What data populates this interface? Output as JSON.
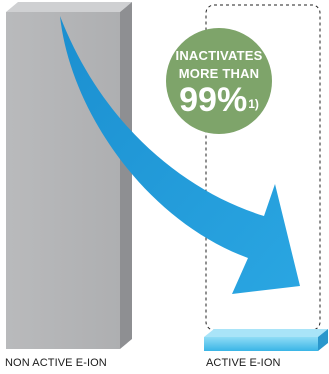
{
  "badge": {
    "line1": "INACTIVATES",
    "line2": "MORE THAN",
    "percent": "99%",
    "footnote": "1)"
  },
  "labels": {
    "left": "NON ACTIVE E-ION",
    "right": "ACTIVE E-ION"
  },
  "colors": {
    "bar": "#b7b8ba",
    "arrow": "#1e9ad6",
    "badge": "#7ea46a",
    "small_bar": "#5cc7ee"
  }
}
